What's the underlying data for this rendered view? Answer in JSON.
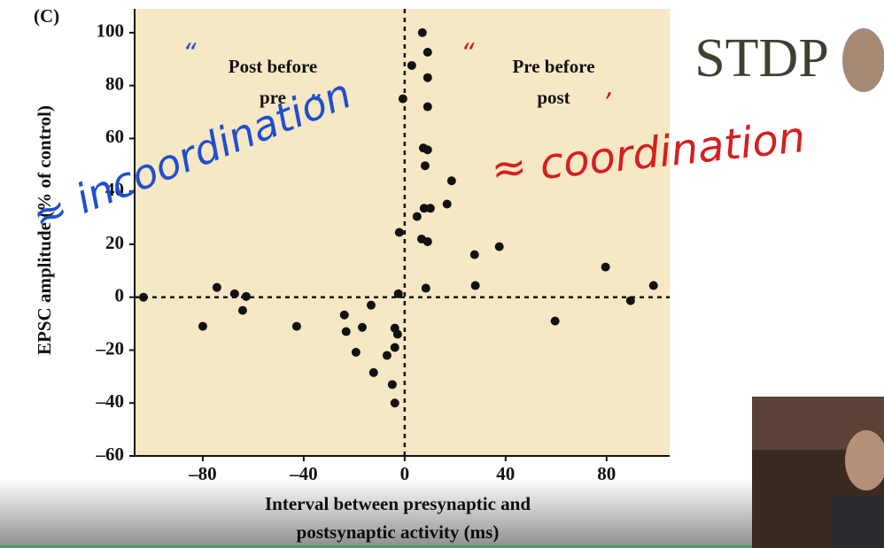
{
  "chart_data": {
    "type": "scatter",
    "panel_label": "(C)",
    "x_label": [
      "Interval between presynaptic and",
      "postsynaptic activity (ms)"
    ],
    "y_label": "EPSC amplitude (% of control)",
    "annotations": [
      [
        "Post before",
        "pre"
      ],
      [
        "Pre before",
        "post"
      ]
    ],
    "color": "#111111",
    "plot_background": "#f6e8c4",
    "x": [
      -103.5,
      -74.4,
      -67.4,
      -62.8,
      -64.2,
      -80,
      -42.8,
      -23.9,
      -23.2,
      -16.8,
      -13.3,
      -19.3,
      -12.3,
      -7,
      -4.9,
      -3.9,
      -3.9,
      -2.8,
      -3.9,
      -2.5,
      -2.1,
      -0.7,
      2.8,
      7,
      9.1,
      9.1,
      9.1,
      7.4,
      9.1,
      8.1,
      4.9,
      7.7,
      10.2,
      6.7,
      9.1,
      8.4,
      18.6,
      16.8,
      27.7,
      28,
      37.5,
      59.6,
      79.6,
      89.5,
      98.6
    ],
    "values": [
      0,
      3.7,
      1.3,
      0.3,
      -5,
      -11,
      -11,
      -6.7,
      -13,
      -11.4,
      -3,
      -20.8,
      -28.5,
      -22,
      -33,
      -40,
      -11.7,
      -14,
      -19,
      1.3,
      24.5,
      75,
      87.6,
      100,
      92.6,
      83,
      72,
      56.4,
      55.7,
      49.7,
      30.5,
      33.6,
      33.6,
      22,
      21,
      3.4,
      44,
      35.2,
      16.1,
      4.4,
      19.1,
      -9,
      11.4,
      -1.3,
      4.4
    ],
    "xlim": [
      -107,
      105
    ],
    "ylim": [
      -60,
      109
    ],
    "xticks": [
      {
        "value": -80,
        "label": "–80"
      },
      {
        "value": -40,
        "label": "–40"
      },
      0,
      40,
      80
    ],
    "yticks": [
      {
        "value": -60,
        "label": "–60"
      },
      {
        "value": -40,
        "label": "–40"
      },
      {
        "value": -20,
        "label": "–20"
      },
      0,
      20,
      40,
      60,
      80,
      100
    ]
  },
  "slide_title": "STDP",
  "handwriting": [
    {
      "text": "≈ incoordination",
      "color": "#1f4fd0"
    },
    {
      "text": "≈ coordination",
      "color": "#d42020"
    },
    {
      "text": "“",
      "color": "#1f4fd0"
    },
    {
      "text": "”",
      "color": "#1f4fd0"
    },
    {
      "text": "“",
      "color": "#d42020"
    },
    {
      "text": "’",
      "color": "#d42020"
    }
  ]
}
